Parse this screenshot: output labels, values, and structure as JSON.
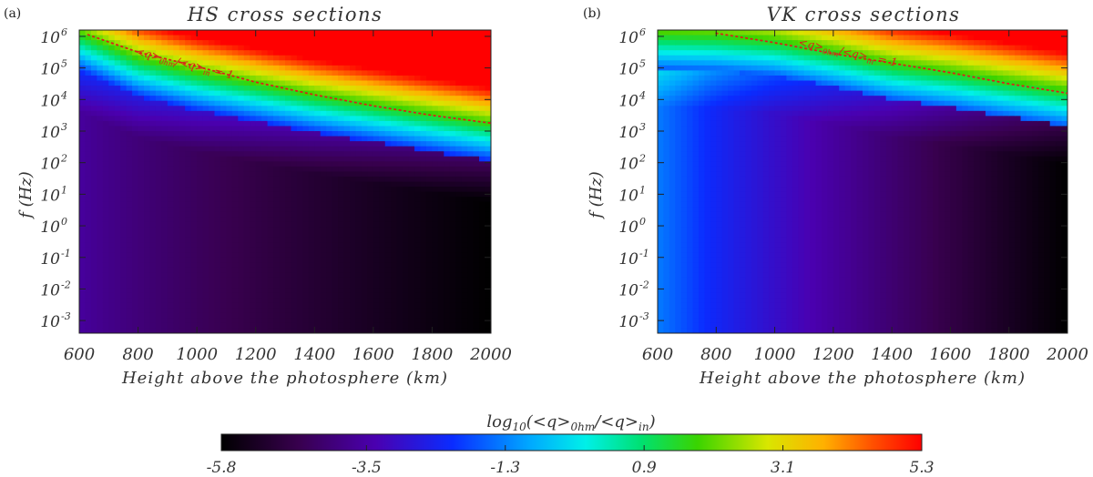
{
  "chart_data": [
    {
      "type": "heatmap",
      "panel_tag": "(a)",
      "title": "HS cross sections",
      "xlabel": "Height above the photosphere (km)",
      "ylabel": "f (Hz)",
      "xlim": [
        600,
        2000
      ],
      "ylim_log10": [
        -3.4,
        6.2
      ],
      "x_ticks": [
        "600",
        "800",
        "1000",
        "1200",
        "1400",
        "1600",
        "1800",
        "2000"
      ],
      "y_tick_mantissa": "10",
      "y_tick_exponents": [
        "-3",
        "-2",
        "-1",
        "0",
        "1",
        "2",
        "3",
        "4",
        "5",
        "6"
      ],
      "contour_label": "<q>ohm/<q>in = 1",
      "contour_label_parts": {
        "q1": "<q>",
        "sub1": "0hm",
        "slash": "/",
        "q2": "<q>",
        "sub2": "in",
        "eq": " = 1"
      },
      "contour_log10_f": {
        "heights_km": [
          630,
          800,
          1000,
          1200,
          1400,
          1600,
          1800,
          2000
        ],
        "values": [
          6.05,
          5.5,
          5.05,
          4.55,
          4.15,
          3.8,
          3.5,
          3.25
        ]
      },
      "trend_note_heights_km": [
        600,
        800,
        1000,
        1200,
        1400,
        1600,
        1800,
        2000
      ],
      "blue_band_log10_f": [
        4.9,
        4.1,
        3.65,
        3.3,
        2.95,
        2.65,
        2.35,
        2.05
      ]
    },
    {
      "type": "heatmap",
      "panel_tag": "(b)",
      "title": "VK cross sections",
      "xlabel": "Height above the photosphere (km)",
      "ylabel": "f (Hz)",
      "xlim": [
        600,
        2000
      ],
      "ylim_log10": [
        -3.4,
        6.2
      ],
      "x_ticks": [
        "600",
        "800",
        "1000",
        "1200",
        "1400",
        "1600",
        "1800",
        "2000"
      ],
      "y_tick_mantissa": "10",
      "y_tick_exponents": [
        "-3",
        "-2",
        "-1",
        "0",
        "1",
        "2",
        "3",
        "4",
        "5",
        "6"
      ],
      "contour_label": "<q>ohm/<q>in = 1",
      "contour_label_parts": {
        "q1": "<q>",
        "sub1": "0hm",
        "slash": "/",
        "q2": "<q>",
        "sub2": "in",
        "eq": " = 1"
      },
      "contour_log10_f": {
        "heights_km": [
          800,
          1000,
          1200,
          1400,
          1600,
          1800,
          2000
        ],
        "values": [
          6.1,
          5.8,
          5.45,
          5.15,
          4.85,
          4.5,
          4.2
        ]
      },
      "blue_band_log10_f": [
        4.9,
        4.75,
        4.4,
        4.0,
        3.75,
        3.45,
        3.15
      ]
    }
  ],
  "colorbar": {
    "label_main": "log",
    "label_sub": "10",
    "label_rest_1": "(<q>",
    "label_sub_ohm": "0hm",
    "label_rest_2": "/<q>",
    "label_sub_in": "in",
    "label_rest_3": ")",
    "range": [
      -5.8,
      5.3
    ],
    "ticks": [
      "-5.8",
      "-3.5",
      "-1.3",
      "0.9",
      "3.1",
      "5.3"
    ],
    "colormap": "rainbow (black-purple-blue-cyan-green-yellow-red)"
  },
  "colors": {
    "contour": "#d9201c",
    "text": "#222222"
  }
}
